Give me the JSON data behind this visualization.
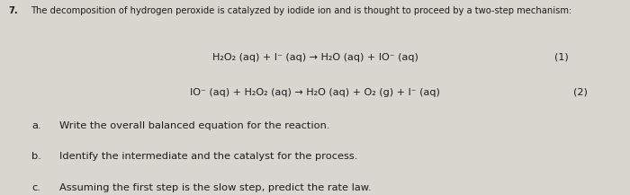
{
  "background_color": "#d9d6d0",
  "question_number": "7.",
  "intro_text": "The decomposition of hydrogen peroxide is catalyzed by iodide ion and is thought to proceed by a two-step mechanism:",
  "eq1": "H₂O₂ (aq) + I⁻ (aq) → H₂O (aq) + IO⁻ (aq)",
  "eq1_num": "(1)",
  "eq2": "IO⁻ (aq) + H₂O₂ (aq) → H₂O (aq) + O₂ (g) + I⁻ (aq)",
  "eq2_num": "(2)",
  "part_a_label": "a.",
  "part_a_text": "Write the overall balanced equation for the reaction.",
  "part_b_label": "b.",
  "part_b_text": "Identify the intermediate and the catalyst for the process.",
  "part_c_label": "c.",
  "part_c_text": "Assuming the first step is the slow step, predict the rate law.",
  "text_color": "#1c1c1c",
  "font_size_intro": 7.2,
  "font_size_eq": 8.0,
  "font_size_parts": 8.2
}
